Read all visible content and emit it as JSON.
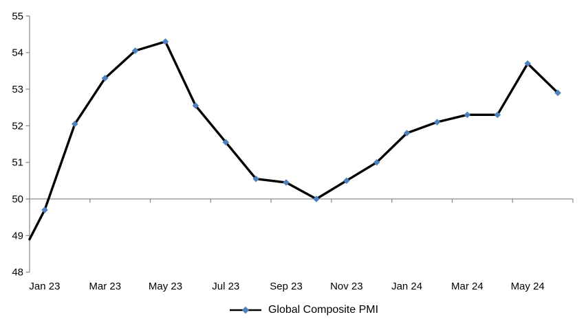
{
  "chart_data": {
    "type": "line",
    "categories": [
      "Jan 23",
      "Feb 23",
      "Mar 23",
      "Apr 23",
      "May 23",
      "Jun 23",
      "Jul 23",
      "Aug 23",
      "Sep 23",
      "Oct 23",
      "Nov 23",
      "Dec 23",
      "Jan 24",
      "Feb 24",
      "Mar 24",
      "Apr 24",
      "May 24",
      "Jun 24"
    ],
    "series": [
      {
        "name": "Global Composite PMI",
        "values": [
          49.7,
          52.05,
          53.3,
          54.05,
          54.3,
          52.55,
          51.55,
          50.55,
          50.45,
          50.0,
          50.5,
          51.0,
          51.8,
          52.1,
          52.3,
          52.3,
          53.7,
          52.9
        ],
        "line_color": "#000000",
        "marker_color": "#4f81bd",
        "marker_shape": "diamond"
      }
    ],
    "left_edge_partial_value": 48.9,
    "x_tick_labels": [
      "Jan 23",
      "Mar 23",
      "May 23",
      "Jul 23",
      "Sep 23",
      "Nov 23",
      "Jan 24",
      "Mar 24",
      "May 24"
    ],
    "x_label_every": 2,
    "ylim": [
      48,
      55
    ],
    "y_ticks": [
      55,
      54,
      53,
      52,
      51,
      50,
      49,
      48
    ],
    "x_axis_cross_value": 50,
    "grid": false,
    "axis_color": "#8e8e8e",
    "background_color": "#ffffff",
    "legend": {
      "position": "bottom",
      "label": "Global Composite PMI"
    }
  }
}
